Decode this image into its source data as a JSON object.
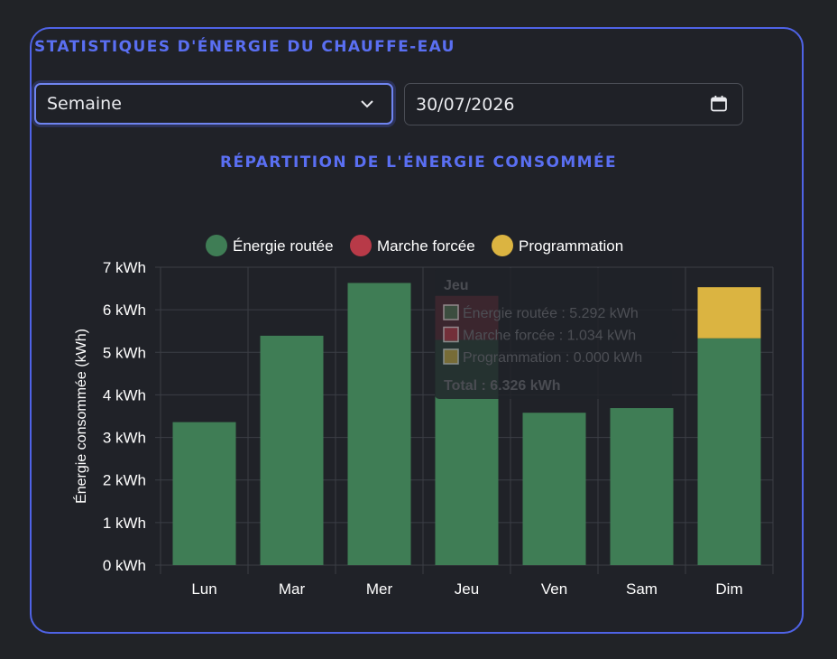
{
  "header": {
    "title": "STATISTIQUES D'ÉNERGIE DU CHAUFFE-EAU"
  },
  "controls": {
    "period_select": {
      "value": "Semaine"
    },
    "date_input": {
      "value": "30/07/2026"
    }
  },
  "colors": {
    "accent": "#4f63e6",
    "routee": "#3f7d55",
    "forcee": "#b83a48",
    "programmation": "#dbb441"
  },
  "chart_data": {
    "type": "bar",
    "stacked": true,
    "title": "RÉPARTITION DE L'ÉNERGIE CONSOMMÉE",
    "ylabel": "Énergie consommée (kWh)",
    "xlabel": "",
    "ylim": [
      0,
      7
    ],
    "yticks": [
      "0 kWh",
      "1 kWh",
      "2 kWh",
      "3 kWh",
      "4 kWh",
      "5 kWh",
      "6 kWh",
      "7 kWh"
    ],
    "categories": [
      "Lun",
      "Mar",
      "Mer",
      "Jeu",
      "Ven",
      "Sam",
      "Dim"
    ],
    "series": [
      {
        "name": "Énergie routée",
        "color": "#3f7d55",
        "values": [
          3.36,
          5.39,
          6.63,
          5.292,
          3.58,
          3.69,
          5.33
        ]
      },
      {
        "name": "Marche forcée",
        "color": "#b83a48",
        "values": [
          0,
          0,
          0,
          1.034,
          0,
          0,
          0
        ]
      },
      {
        "name": "Programmation",
        "color": "#dbb441",
        "values": [
          0,
          0,
          0,
          0.0,
          0,
          0,
          1.2
        ]
      }
    ],
    "legend": "top",
    "grid": true,
    "tooltip": {
      "title": "Jeu",
      "lines": [
        "Énergie routée : 5.292 kWh",
        "Marche forcée : 1.034 kWh",
        "Programmation : 0.000 kWh"
      ],
      "total": "Total : 6.326 kWh"
    }
  }
}
